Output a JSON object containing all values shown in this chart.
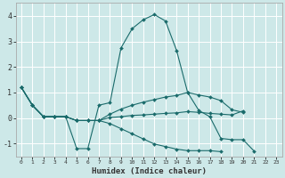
{
  "title": "",
  "xlabel": "Humidex (Indice chaleur)",
  "bg_color": "#cde8e8",
  "grid_color": "#ffffff",
  "line_color": "#1a6b6b",
  "xlim": [
    -0.5,
    23.5
  ],
  "ylim": [
    -1.5,
    4.5
  ],
  "xticks": [
    0,
    1,
    2,
    3,
    4,
    5,
    6,
    7,
    8,
    9,
    10,
    11,
    12,
    13,
    14,
    15,
    16,
    17,
    18,
    19,
    20,
    21,
    22,
    23
  ],
  "yticks": [
    -1,
    0,
    1,
    2,
    3,
    4
  ],
  "line1_x": [
    0,
    1,
    2,
    3,
    4,
    5,
    6,
    7,
    8,
    9,
    10,
    11,
    12,
    13,
    14,
    15,
    16,
    17,
    18,
    19,
    20,
    21
  ],
  "line1_y": [
    1.2,
    0.5,
    0.05,
    0.05,
    0.05,
    -1.2,
    -1.2,
    0.5,
    0.6,
    2.75,
    3.5,
    3.85,
    4.05,
    3.8,
    2.65,
    1.0,
    0.3,
    0.05,
    -0.8,
    -0.85,
    -0.85,
    -1.3
  ],
  "line2_x": [
    0,
    1,
    2,
    3,
    4,
    5,
    6,
    7,
    8,
    9,
    10,
    11,
    12,
    13,
    14,
    15,
    16,
    17,
    18,
    19,
    20
  ],
  "line2_y": [
    1.2,
    0.5,
    0.05,
    0.05,
    0.05,
    -0.1,
    -0.1,
    -0.1,
    0.15,
    0.35,
    0.5,
    0.62,
    0.72,
    0.82,
    0.88,
    1.0,
    0.9,
    0.82,
    0.68,
    0.32,
    0.22
  ],
  "line3_x": [
    0,
    1,
    2,
    3,
    4,
    5,
    6,
    7,
    8,
    9,
    10,
    11,
    12,
    13,
    14,
    15,
    16,
    17,
    18,
    19,
    20
  ],
  "line3_y": [
    1.2,
    0.5,
    0.05,
    0.05,
    0.05,
    -0.1,
    -0.1,
    -0.1,
    0.02,
    0.05,
    0.1,
    0.12,
    0.15,
    0.18,
    0.2,
    0.25,
    0.22,
    0.18,
    0.15,
    0.12,
    0.28
  ],
  "line4_x": [
    0,
    1,
    2,
    3,
    4,
    5,
    6,
    7,
    8,
    9,
    10,
    11,
    12,
    13,
    14,
    15,
    16,
    17,
    18
  ],
  "line4_y": [
    1.2,
    0.5,
    0.05,
    0.05,
    0.05,
    -0.1,
    -0.1,
    -0.1,
    -0.22,
    -0.42,
    -0.62,
    -0.82,
    -1.02,
    -1.12,
    -1.22,
    -1.28,
    -1.28,
    -1.28,
    -1.32
  ]
}
